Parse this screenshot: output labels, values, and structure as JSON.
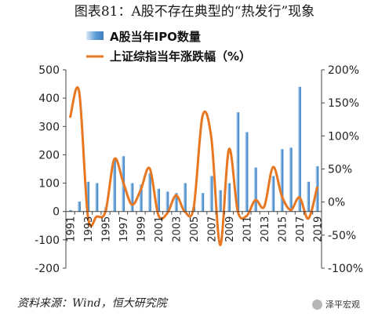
{
  "title": "图表81：A股不存在典型的“热发行”现象",
  "source": "资料来源：Wind，恒大研究院",
  "watermark": "泽平宏观",
  "colors": {
    "bar": "#5b9bd5",
    "line": "#e87722",
    "axis": "#444444"
  },
  "chart_data": {
    "type": "bar+line",
    "years": [
      1991,
      1992,
      1993,
      1994,
      1995,
      1996,
      1997,
      1998,
      1999,
      2000,
      2001,
      2002,
      2003,
      2004,
      2005,
      2006,
      2007,
      2008,
      2009,
      2010,
      2011,
      2012,
      2013,
      2014,
      2015,
      2016,
      2017,
      2018,
      2019
    ],
    "x_tick_labels": [
      "1991",
      "1993",
      "1995",
      "1997",
      "1999",
      "2001",
      "2003",
      "2005",
      "2007",
      "2009",
      "2011",
      "2013",
      "2015",
      "2017",
      "2019"
    ],
    "series": [
      {
        "name": "A股当年IPO数量",
        "type": "bar",
        "axis": "left",
        "values": [
          5,
          35,
          105,
          100,
          15,
          185,
          195,
          100,
          95,
          135,
          80,
          70,
          65,
          100,
          15,
          65,
          125,
          75,
          100,
          350,
          280,
          155,
          0,
          125,
          220,
          225,
          440,
          105,
          160
        ]
      },
      {
        "name": "上证综指当年涨跌幅（%）",
        "type": "line",
        "axis": "right",
        "values": [
          129,
          167,
          -22,
          -22,
          -14,
          65,
          30,
          -4,
          19,
          51,
          -20,
          -17,
          10,
          -15,
          -8,
          130,
          97,
          -65,
          80,
          -14,
          -21,
          3,
          -7,
          53,
          9,
          -12,
          7,
          -25,
          22
        ]
      }
    ],
    "y_left": {
      "min": -200,
      "max": 500,
      "step": 100,
      "tick_labels": [
        "500",
        "400",
        "300",
        "200",
        "100",
        "0",
        "-100",
        "-200"
      ]
    },
    "y_right": {
      "min": -100,
      "max": 200,
      "step": 50,
      "tick_labels": [
        "200%",
        "150%",
        "100%",
        "50%",
        "0%",
        "-50%",
        "-100%"
      ]
    },
    "legend_position": "top-center",
    "grid": false
  }
}
